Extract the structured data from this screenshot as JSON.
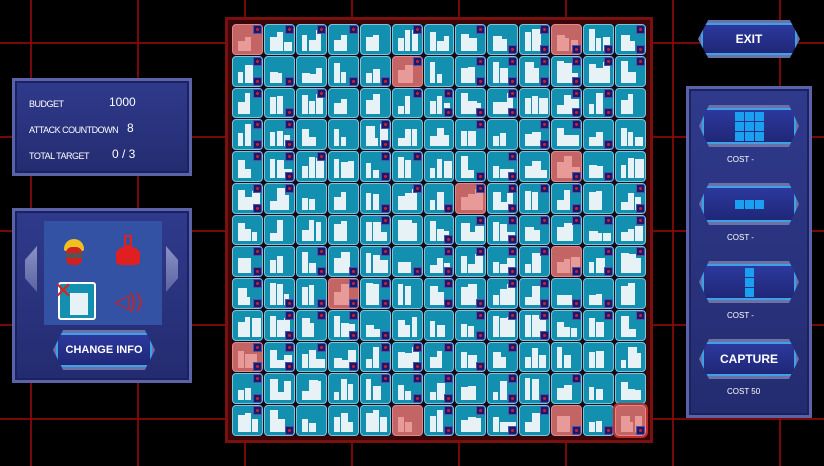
{
  "stats": {
    "budget_label": "BUDGET",
    "budget": "1000",
    "countdown_label": "ATTACK COUNTDOWN",
    "countdown": "8",
    "target_label": "TOTAL TARGET",
    "target": "0 / 3"
  },
  "info": {
    "icons": [
      "hacker-avatar-icon",
      "flask-icon",
      "building-crossed-icon",
      "speaker-icon"
    ],
    "change_label": "CHANGE INFO"
  },
  "exit_label": "EXIT",
  "tools": [
    {
      "shape": "3x3",
      "cost": "COST -"
    },
    {
      "shape": "1x3 horizontal",
      "cost": "COST -"
    },
    {
      "shape": "3x1 vertical",
      "cost": "COST -"
    },
    {
      "label": "CAPTURE",
      "cost": "COST 50"
    }
  ],
  "board": {
    "rows": 13,
    "cols": 13,
    "highlighted_cells": [
      [
        0,
        0
      ],
      [
        0,
        10
      ],
      [
        1,
        5
      ],
      [
        4,
        10
      ],
      [
        5,
        7
      ],
      [
        7,
        10
      ],
      [
        8,
        3
      ],
      [
        10,
        0
      ],
      [
        12,
        5
      ],
      [
        12,
        10
      ],
      [
        12,
        12
      ]
    ],
    "outlined_cells": [
      [
        12,
        12
      ]
    ]
  },
  "colors": {
    "tile": "#138fb0",
    "highlight": "#c46565",
    "panel": "#2f3a8c",
    "accent": "#1aa0f0"
  }
}
